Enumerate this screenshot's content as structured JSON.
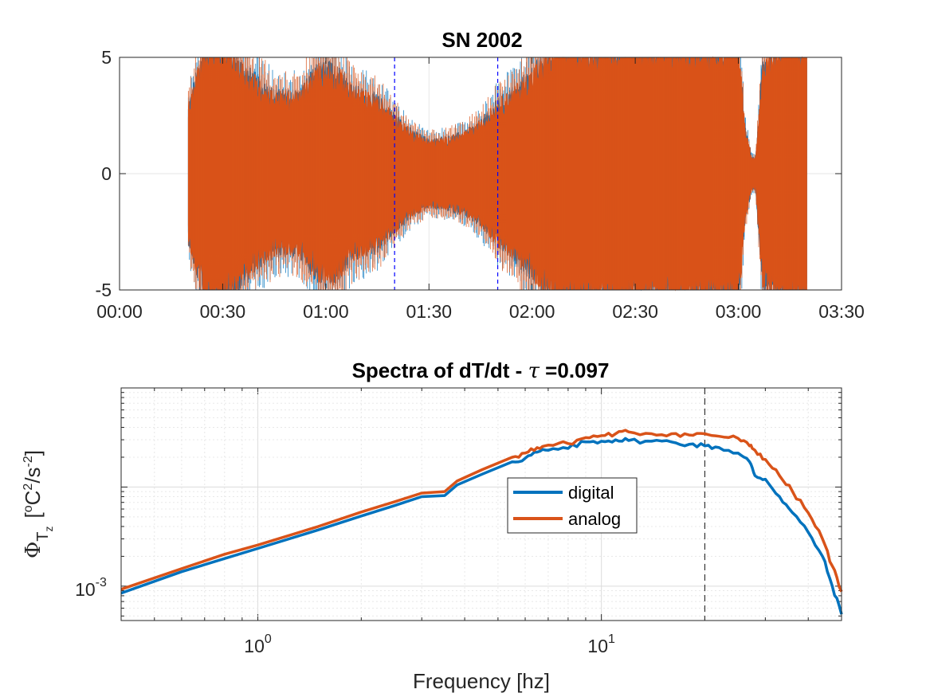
{
  "chart_data": [
    {
      "type": "line",
      "title": "SN 2002",
      "xlabel": "",
      "ylabel": "",
      "x_tick_labels": [
        "00:00",
        "00:30",
        "01:00",
        "01:30",
        "02:00",
        "02:30",
        "03:00",
        "03:30"
      ],
      "x_tick_values_minutes": [
        0,
        30,
        60,
        90,
        120,
        150,
        180,
        210
      ],
      "xlim_minutes": [
        0,
        210
      ],
      "y_tick_labels": [
        "-5",
        "0",
        "5"
      ],
      "y_tick_values": [
        -5,
        0,
        5
      ],
      "ylim": [
        -5,
        5
      ],
      "grid": true,
      "series": [
        {
          "color": "#0072BD",
          "data_start_minutes": 20,
          "data_end_minutes": 200
        },
        {
          "color": "#D95319",
          "data_start_minutes": 20,
          "data_end_minutes": 200,
          "envelope": {
            "x_minutes": [
              20,
              25,
              30,
              38,
              45,
              52,
              58,
              63,
              68,
              75,
              80,
              85,
              90,
              95,
              100,
              105,
              110,
              115,
              120,
              128,
              135,
              142,
              150,
              158,
              165,
              172,
              180,
              182,
              184,
              185,
              187,
              192,
              196,
              200
            ],
            "amplitude": [
              3.0,
              6.0,
              6.0,
              4.5,
              3.6,
              3.6,
              4.8,
              4.8,
              3.8,
              3.4,
              2.6,
              1.9,
              1.5,
              1.6,
              1.8,
              2.3,
              3.2,
              3.8,
              4.6,
              6.0,
              6.0,
              6.0,
              6.0,
              6.0,
              6.0,
              6.0,
              6.0,
              2.0,
              0.7,
              0.7,
              5.0,
              6.0,
              6.0,
              6.0
            ]
          }
        }
      ],
      "vertical_lines_minutes": [
        80,
        110
      ],
      "vertical_line_color": "#0000FF"
    },
    {
      "type": "line",
      "title": "Spectra of dT/dt - τ =0.097",
      "title_prefix": "Spectra of dT/dt - ",
      "title_symbol": "τ",
      "title_suffix": " =0.097",
      "xlabel": "Frequency [hz]",
      "ylabel_base": "Φ",
      "ylabel_sub": "T",
      "ylabel_subsub": "z",
      "ylabel_units": [
        "[",
        "o",
        "C",
        "2",
        "/s",
        "-2",
        "]"
      ],
      "x_scale": "log",
      "y_scale": "log",
      "xlim": [
        0.4,
        50
      ],
      "ylim": [
        0.00045,
        0.1
      ],
      "x_tick_values": [
        1,
        10
      ],
      "x_tick_labels": [
        {
          "base": "10",
          "exp": "0"
        },
        {
          "base": "10",
          "exp": "1"
        }
      ],
      "y_tick_values": [
        0.001
      ],
      "y_tick_labels": [
        {
          "base": "10",
          "exp": "-3"
        }
      ],
      "grid": true,
      "minor_grid": true,
      "vertical_line_x": 20,
      "legend": {
        "position": "center",
        "entries": [
          "digital",
          "analog"
        ]
      },
      "series": [
        {
          "name": "digital",
          "color": "#0072BD",
          "x": [
            0.4,
            0.6,
            0.8,
            1.0,
            1.5,
            2.0,
            2.5,
            3.0,
            3.5,
            3.8,
            4.5,
            5.5,
            6.0,
            6.5,
            7.0,
            8.0,
            9.0,
            10.0,
            11.0,
            12.0,
            14.0,
            16.0,
            18.0,
            20.0,
            22.0,
            25.0,
            27.0,
            28.0,
            30.0,
            33.0,
            36.0,
            40.0,
            44.0,
            47.0,
            50.0
          ],
          "y": [
            0.00085,
            0.0014,
            0.0019,
            0.0024,
            0.0037,
            0.0051,
            0.0065,
            0.008,
            0.0082,
            0.0105,
            0.0135,
            0.018,
            0.0195,
            0.0225,
            0.0235,
            0.0245,
            0.0285,
            0.029,
            0.03,
            0.0295,
            0.029,
            0.0285,
            0.027,
            0.026,
            0.025,
            0.022,
            0.018,
            0.013,
            0.012,
            0.008,
            0.0055,
            0.0035,
            0.002,
            0.001,
            0.00052
          ]
        },
        {
          "name": "analog",
          "color": "#D95319",
          "x": [
            0.4,
            0.6,
            0.8,
            1.0,
            1.5,
            2.0,
            2.5,
            3.0,
            3.5,
            3.8,
            4.5,
            5.5,
            6.0,
            6.5,
            7.0,
            8.0,
            9.0,
            10.0,
            11.0,
            12.0,
            14.0,
            16.0,
            18.0,
            20.0,
            22.0,
            25.0,
            27.0,
            28.0,
            30.0,
            33.0,
            36.0,
            40.0,
            44.0,
            47.0,
            50.0
          ],
          "y": [
            0.00093,
            0.0015,
            0.0021,
            0.0026,
            0.004,
            0.0056,
            0.0071,
            0.0087,
            0.009,
            0.0115,
            0.015,
            0.02,
            0.022,
            0.025,
            0.0265,
            0.0275,
            0.0315,
            0.033,
            0.0345,
            0.036,
            0.0345,
            0.0345,
            0.0335,
            0.0345,
            0.0325,
            0.031,
            0.026,
            0.0235,
            0.019,
            0.013,
            0.009,
            0.0055,
            0.003,
            0.0016,
            0.00088
          ]
        }
      ]
    }
  ]
}
